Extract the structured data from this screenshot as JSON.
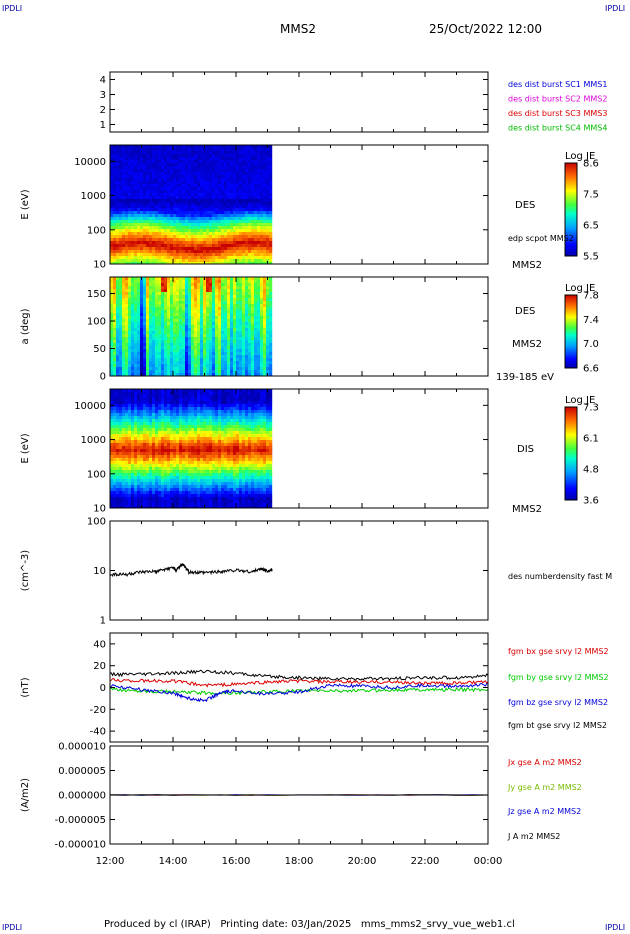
{
  "corner_mark": "IPDLI",
  "header": {
    "spacecraft": "MMS2",
    "datetime": "25/Oct/2022 12:00"
  },
  "footer": {
    "text": "Produced by cl (IRAP)   Printing date: 03/Jan/2025   mms_mms2_srvy_vue_web1.cl"
  },
  "chart_data": [
    {
      "type": "table",
      "id": "panel1",
      "ylim": [
        0.5,
        4.5
      ],
      "y_ticks": [
        "1",
        "2",
        "3",
        "4"
      ],
      "legend": [
        {
          "label": "des dist burst SC1 MMS1",
          "color": "#0000dd"
        },
        {
          "label": "des dist burst SC2 MMS2",
          "color": "#dd00dd"
        },
        {
          "label": "des dist burst SC3 MMS3",
          "color": "#dd0000"
        },
        {
          "label": "des dist burst SC4 MMS4",
          "color": "#00bb00"
        }
      ]
    },
    {
      "type": "heatmap",
      "id": "panel2",
      "ylabel": "E (eV)",
      "yscale": "log",
      "ylim": [
        10,
        30000
      ],
      "y_ticks": [
        "10",
        "100",
        "1000",
        "10000"
      ],
      "data_coverage_hours": [
        12.0,
        17.15
      ],
      "side_labels": [
        "DES",
        "edp scpot MMS2",
        "MMS2"
      ],
      "colorbar": {
        "title": "Log JE",
        "ticks": [
          "8.6",
          "7.5",
          "6.5",
          "5.5"
        ],
        "range": [
          5.5,
          8.6
        ]
      }
    },
    {
      "type": "heatmap",
      "id": "panel3",
      "ylabel": "a (deg)",
      "ylim": [
        0,
        180
      ],
      "y_ticks": [
        "0",
        "50",
        "100",
        "150"
      ],
      "data_coverage_hours": [
        12.0,
        17.15
      ],
      "side_labels": [
        "DES",
        "MMS2",
        "139-185 eV"
      ],
      "colorbar": {
        "title": "Log JE",
        "ticks": [
          "7.8",
          "7.4",
          "7.0",
          "6.6"
        ],
        "range": [
          6.6,
          7.8
        ]
      }
    },
    {
      "type": "heatmap",
      "id": "panel4",
      "ylabel": "E (eV)",
      "yscale": "log",
      "ylim": [
        10,
        30000
      ],
      "y_ticks": [
        "10",
        "100",
        "1000",
        "10000"
      ],
      "data_coverage_hours": [
        12.0,
        17.15
      ],
      "side_labels": [
        "DIS",
        "MMS2"
      ],
      "colorbar": {
        "title": "Log JE",
        "ticks": [
          "7.3",
          "6.1",
          "4.8",
          "3.6"
        ],
        "range": [
          3.6,
          7.3
        ]
      }
    },
    {
      "type": "line",
      "id": "panel5",
      "ylabel": "(cm^-3)",
      "yscale": "log",
      "ylim": [
        1,
        100
      ],
      "y_ticks": [
        "1",
        "10",
        "100"
      ],
      "series": [
        {
          "name": "des numberdensity fast M",
          "color": "#000000",
          "x": [
            12.0,
            12.5,
            13.0,
            13.5,
            14.0,
            14.1,
            14.3,
            14.5,
            15.0,
            15.5,
            16.0,
            16.5,
            16.8,
            17.0,
            17.15
          ],
          "y": [
            8.5,
            8.3,
            9.2,
            9.6,
            11.5,
            10.0,
            13.5,
            9.2,
            9.0,
            9.6,
            10.2,
            9.4,
            10.8,
            9.8,
            10.2
          ]
        }
      ]
    },
    {
      "type": "line",
      "id": "panel6",
      "ylabel": "(nT)",
      "ylim": [
        -50,
        50
      ],
      "y_ticks": [
        "-40",
        "-20",
        "0",
        "20",
        "40"
      ],
      "series": [
        {
          "name": "fgm bx gse srvy l2 MMS2",
          "color": "#dd0000",
          "x": [
            12.0,
            13.0,
            14.0,
            15.0,
            16.0,
            17.0,
            18.0,
            19.0,
            20.0,
            21.0,
            22.0,
            23.0,
            24.0
          ],
          "y": [
            7,
            6,
            6,
            2,
            3,
            5,
            6,
            5,
            5,
            5,
            4,
            4,
            5
          ]
        },
        {
          "name": "fgm by gse srvy l2 MMS2",
          "color": "#00cc00",
          "x": [
            12.0,
            13.0,
            14.0,
            15.0,
            16.0,
            17.0,
            18.0,
            19.0,
            20.0,
            21.0,
            22.0,
            23.0,
            24.0
          ],
          "y": [
            -2,
            -3,
            -4,
            -5,
            -5,
            -4,
            -3,
            -3,
            -3,
            -2,
            -2,
            -2,
            -2
          ]
        },
        {
          "name": "fgm bz gse srvy l2 MMS2",
          "color": "#0000dd",
          "x": [
            12.0,
            13.0,
            14.0,
            14.5,
            15.0,
            15.5,
            16.0,
            17.0,
            18.0,
            19.0,
            20.0,
            21.0,
            22.0,
            23.0,
            24.0
          ],
          "y": [
            2,
            -2,
            -5,
            -10,
            -12,
            -5,
            -3,
            -6,
            -4,
            2,
            1,
            0,
            2,
            1,
            3
          ]
        },
        {
          "name": "fgm bt gse srvy l2 MMS2",
          "color": "#000000",
          "x": [
            12.0,
            13.0,
            14.0,
            15.0,
            16.0,
            17.0,
            18.0,
            19.0,
            20.0,
            21.0,
            22.0,
            23.0,
            24.0
          ],
          "y": [
            12,
            12,
            13,
            15,
            13,
            10,
            9,
            8,
            8,
            8,
            9,
            9,
            11
          ]
        }
      ]
    },
    {
      "type": "line",
      "id": "panel7",
      "ylabel": "(A/m2)",
      "ylim": [
        -1e-05,
        1e-05
      ],
      "y_ticks": [
        "-0.000010",
        "-0.000005",
        "0.000000",
        "0.000005",
        "0.000010"
      ],
      "series": [
        {
          "name": "Jx gse A m2 MMS2",
          "color": "#dd0000",
          "x": [
            12.0,
            24.0
          ],
          "y": [
            0,
            0
          ]
        },
        {
          "name": "Jy gse A m2 MMS2",
          "color": "#77bb00",
          "x": [
            12.0,
            24.0
          ],
          "y": [
            0,
            0
          ]
        },
        {
          "name": "Jz gse A m2 MMS2",
          "color": "#0000dd",
          "x": [
            12.0,
            24.0
          ],
          "y": [
            0,
            0
          ]
        },
        {
          "name": "J A m2 MMS2",
          "color": "#000000",
          "x": [
            12.0,
            24.0
          ],
          "y": [
            0,
            0
          ]
        }
      ]
    }
  ],
  "x_axis": {
    "range_hours": [
      12.0,
      24.0
    ],
    "tick_labels": [
      "12:00",
      "14:00",
      "16:00",
      "18:00",
      "20:00",
      "22:00",
      "00:00"
    ]
  }
}
